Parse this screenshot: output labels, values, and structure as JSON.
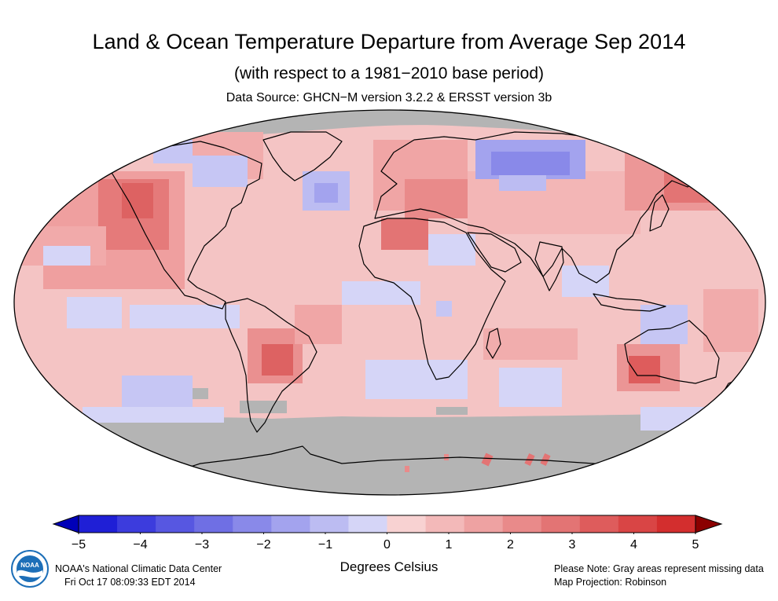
{
  "header": {
    "title": "Land & Ocean Temperature Departure from Average Sep 2014",
    "subtitle": "(with respect to a 1981−2010 base period)",
    "source": "Data Source: GHCN−M version 3.2.2 & ERSST version 3b"
  },
  "map": {
    "projection": "Robinson",
    "ocean_color": "#f4c4c4",
    "missing_color": "#b4b4b4",
    "coastline_color": "#000000"
  },
  "colorbar": {
    "ticks": [
      "−5",
      "−4",
      "−3",
      "−2",
      "−1",
      "0",
      "1",
      "2",
      "3",
      "4",
      "5"
    ],
    "colors": [
      "#1f1fd6",
      "#3c3cdd",
      "#5757e1",
      "#6f6fe4",
      "#8989e9",
      "#a3a3ee",
      "#bcbcf2",
      "#d5d5f7",
      "#f8d2d2",
      "#f3b9b9",
      "#eea2a2",
      "#e98a8a",
      "#e37474",
      "#de5c5c",
      "#d94545",
      "#d32e2e"
    ],
    "low_end": "#0000b8",
    "high_end": "#8b0000",
    "units": "Degrees Celsius"
  },
  "footer": {
    "credit_line1": "NOAA's National Climatic Data Center",
    "credit_line2": "Fri Oct 17 08:09:33 EDT 2014",
    "note_line1": "Please Note: Gray areas represent missing data",
    "note_line2": "Map Projection: Robinson",
    "logo_text": "NOAA"
  }
}
